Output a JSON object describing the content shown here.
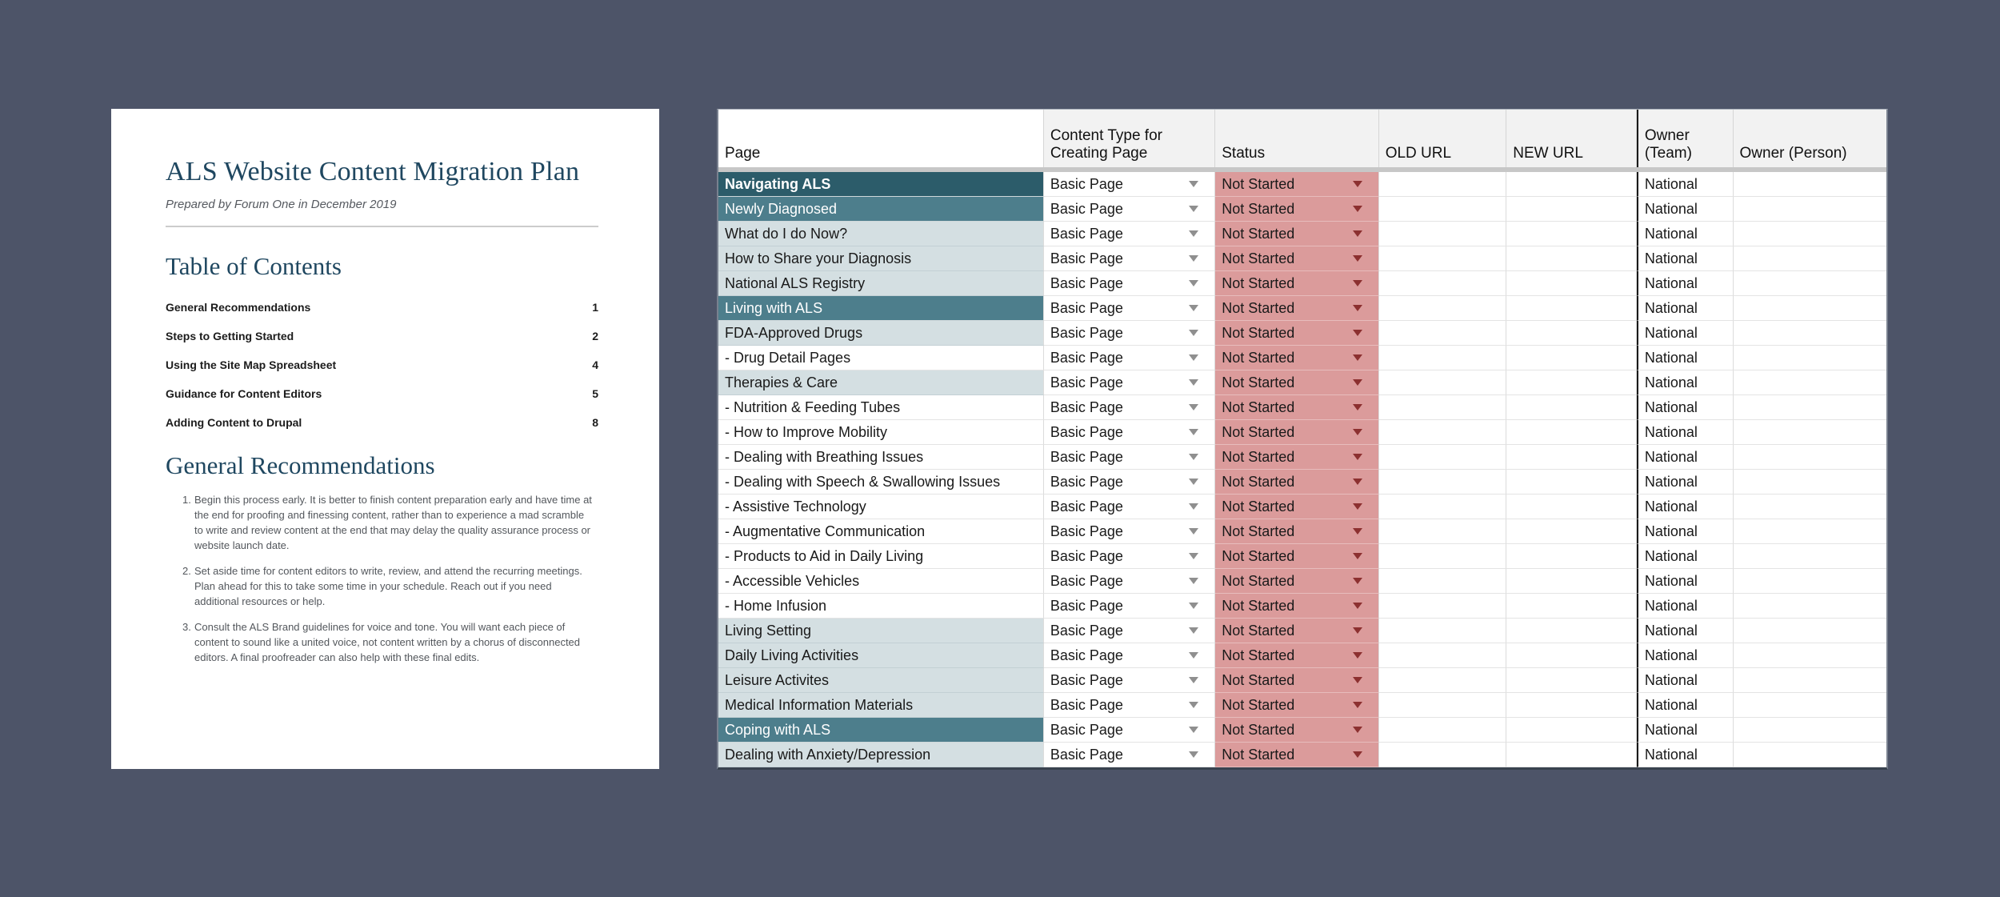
{
  "background_color": "#4d5468",
  "document": {
    "title": "ALS Website Content Migration Plan",
    "subtitle": "Prepared by Forum One in December 2019",
    "toc": {
      "heading": "Table of Contents",
      "items": [
        {
          "label": "General Recommendations",
          "page": "1"
        },
        {
          "label": "Steps to Getting Started",
          "page": "2"
        },
        {
          "label": "Using the Site Map Spreadsheet",
          "page": "4"
        },
        {
          "label": "Guidance for Content Editors",
          "page": "5"
        },
        {
          "label": "Adding Content to Drupal",
          "page": "8"
        }
      ]
    },
    "section": {
      "heading": "General Recommendations",
      "items": [
        {
          "number": "1.",
          "text": "Begin this process early. It is better to finish content preparation early and have time at the end for proofing and finessing content, rather than to experience a mad scramble to write and review content at the end that may delay the quality assurance process or website launch date."
        },
        {
          "number": "2.",
          "text": "Set aside time for content editors to write, review, and attend the recurring meetings. Plan ahead for this to take some time in your schedule. Reach out if you need additional resources or help."
        },
        {
          "number": "3.",
          "text": "Consult the ALS Brand guidelines for voice and tone. You will want each piece of content to sound like a united voice, not content written by a chorus of disconnected editors. A final proofreader can also help with these final edits."
        }
      ]
    }
  },
  "spreadsheet": {
    "columns": [
      "Page",
      "Content Type for Creating Page",
      "Status",
      "OLD URL",
      "NEW URL",
      "Owner (Team)",
      "Owner (Person)"
    ],
    "colors": {
      "row_dark_teal": "#2c5c6a",
      "row_medium_teal": "#4d7e8c",
      "row_light_blue": "#d4dfe2",
      "status_pink": "#db9b9b",
      "status_arrow_red": "#8c3030",
      "content_arrow_gray": "#8f8f8f",
      "header_gray": "#f2f2f2"
    },
    "rows": [
      {
        "page": "Navigating ALS",
        "level": "dark",
        "content_type": "Basic Page",
        "status": "Not Started",
        "old_url": "",
        "new_url": "",
        "owner_team": "National",
        "owner_person": ""
      },
      {
        "page": "Newly Diagnosed",
        "level": "medium",
        "content_type": "Basic Page",
        "status": "Not Started",
        "old_url": "",
        "new_url": "",
        "owner_team": "National",
        "owner_person": ""
      },
      {
        "page": "What do I do Now?",
        "level": "light",
        "content_type": "Basic Page",
        "status": "Not Started",
        "old_url": "",
        "new_url": "",
        "owner_team": "National",
        "owner_person": ""
      },
      {
        "page": "How to Share your Diagnosis",
        "level": "light",
        "content_type": "Basic Page",
        "status": "Not Started",
        "old_url": "",
        "new_url": "",
        "owner_team": "National",
        "owner_person": ""
      },
      {
        "page": "National ALS Registry",
        "level": "light",
        "content_type": "Basic Page",
        "status": "Not Started",
        "old_url": "",
        "new_url": "",
        "owner_team": "National",
        "owner_person": ""
      },
      {
        "page": "Living with ALS",
        "level": "medium",
        "content_type": "Basic Page",
        "status": "Not Started",
        "old_url": "",
        "new_url": "",
        "owner_team": "National",
        "owner_person": ""
      },
      {
        "page": "FDA-Approved Drugs",
        "level": "light",
        "content_type": "Basic Page",
        "status": "Not Started",
        "old_url": "",
        "new_url": "",
        "owner_team": "National",
        "owner_person": ""
      },
      {
        "page": "- Drug Detail Pages",
        "level": "white",
        "content_type": "Basic Page",
        "status": "Not Started",
        "old_url": "",
        "new_url": "",
        "owner_team": "National",
        "owner_person": ""
      },
      {
        "page": "Therapies & Care",
        "level": "light",
        "content_type": "Basic Page",
        "status": "Not Started",
        "old_url": "",
        "new_url": "",
        "owner_team": "National",
        "owner_person": ""
      },
      {
        "page": "- Nutrition & Feeding Tubes",
        "level": "white",
        "content_type": "Basic Page",
        "status": "Not Started",
        "old_url": "",
        "new_url": "",
        "owner_team": "National",
        "owner_person": ""
      },
      {
        "page": "- How to Improve Mobility",
        "level": "white",
        "content_type": "Basic Page",
        "status": "Not Started",
        "old_url": "",
        "new_url": "",
        "owner_team": "National",
        "owner_person": ""
      },
      {
        "page": "- Dealing with Breathing Issues",
        "level": "white",
        "content_type": "Basic Page",
        "status": "Not Started",
        "old_url": "",
        "new_url": "",
        "owner_team": "National",
        "owner_person": ""
      },
      {
        "page": "- Dealing with Speech & Swallowing Issues",
        "level": "white",
        "content_type": "Basic Page",
        "status": "Not Started",
        "old_url": "",
        "new_url": "",
        "owner_team": "National",
        "owner_person": ""
      },
      {
        "page": "- Assistive Technology",
        "level": "white",
        "content_type": "Basic Page",
        "status": "Not Started",
        "old_url": "",
        "new_url": "",
        "owner_team": "National",
        "owner_person": ""
      },
      {
        "page": "- Augmentative Communication",
        "level": "white",
        "content_type": "Basic Page",
        "status": "Not Started",
        "old_url": "",
        "new_url": "",
        "owner_team": "National",
        "owner_person": ""
      },
      {
        "page": "- Products to Aid in Daily Living",
        "level": "white",
        "content_type": "Basic Page",
        "status": "Not Started",
        "old_url": "",
        "new_url": "",
        "owner_team": "National",
        "owner_person": ""
      },
      {
        "page": "- Accessible Vehicles",
        "level": "white",
        "content_type": "Basic Page",
        "status": "Not Started",
        "old_url": "",
        "new_url": "",
        "owner_team": "National",
        "owner_person": ""
      },
      {
        "page": "- Home Infusion",
        "level": "white",
        "content_type": "Basic Page",
        "status": "Not Started",
        "old_url": "",
        "new_url": "",
        "owner_team": "National",
        "owner_person": ""
      },
      {
        "page": "Living Setting",
        "level": "light",
        "content_type": "Basic Page",
        "status": "Not Started",
        "old_url": "",
        "new_url": "",
        "owner_team": "National",
        "owner_person": ""
      },
      {
        "page": "Daily Living Activities",
        "level": "light",
        "content_type": "Basic Page",
        "status": "Not Started",
        "old_url": "",
        "new_url": "",
        "owner_team": "National",
        "owner_person": ""
      },
      {
        "page": "Leisure Activites",
        "level": "light",
        "content_type": "Basic Page",
        "status": "Not Started",
        "old_url": "",
        "new_url": "",
        "owner_team": "National",
        "owner_person": ""
      },
      {
        "page": "Medical Information Materials",
        "level": "light",
        "content_type": "Basic Page",
        "status": "Not Started",
        "old_url": "",
        "new_url": "",
        "owner_team": "National",
        "owner_person": ""
      },
      {
        "page": "Coping with ALS",
        "level": "medium",
        "content_type": "Basic Page",
        "status": "Not Started",
        "old_url": "",
        "new_url": "",
        "owner_team": "National",
        "owner_person": ""
      },
      {
        "page": "Dealing with Anxiety/Depression",
        "level": "light",
        "content_type": "Basic Page",
        "status": "Not Started",
        "old_url": "",
        "new_url": "",
        "owner_team": "National",
        "owner_person": ""
      }
    ]
  }
}
